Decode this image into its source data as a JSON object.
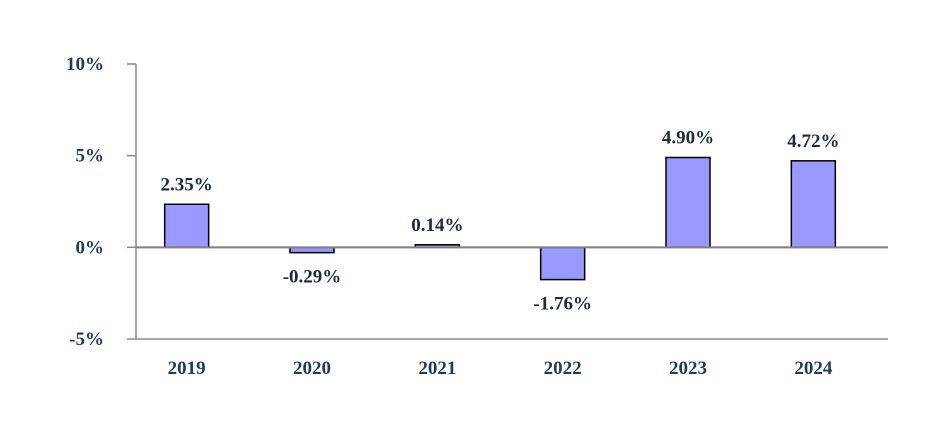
{
  "chart_data": {
    "type": "bar",
    "categories": [
      "2019",
      "2020",
      "2021",
      "2022",
      "2023",
      "2024"
    ],
    "values": [
      2.35,
      -0.29,
      0.14,
      -1.76,
      4.9,
      4.72
    ],
    "data_labels": [
      "2.35%",
      "-0.29%",
      "0.14%",
      "-1.76%",
      "4.90%",
      "4.72%"
    ],
    "y_ticks": [
      {
        "value": 10,
        "label": "10%"
      },
      {
        "value": 5,
        "label": "5%"
      },
      {
        "value": 0,
        "label": "0%"
      },
      {
        "value": -5,
        "label": "-5%"
      }
    ],
    "ylim": [
      -5,
      10
    ],
    "title": "",
    "xlabel": "",
    "ylabel": "",
    "grid": false,
    "legend": "none",
    "colors": {
      "bar_fill": "#9999ff",
      "bar_stroke": "#000000",
      "text": "#1f3b5f",
      "axis": "#8a8a8a"
    }
  }
}
